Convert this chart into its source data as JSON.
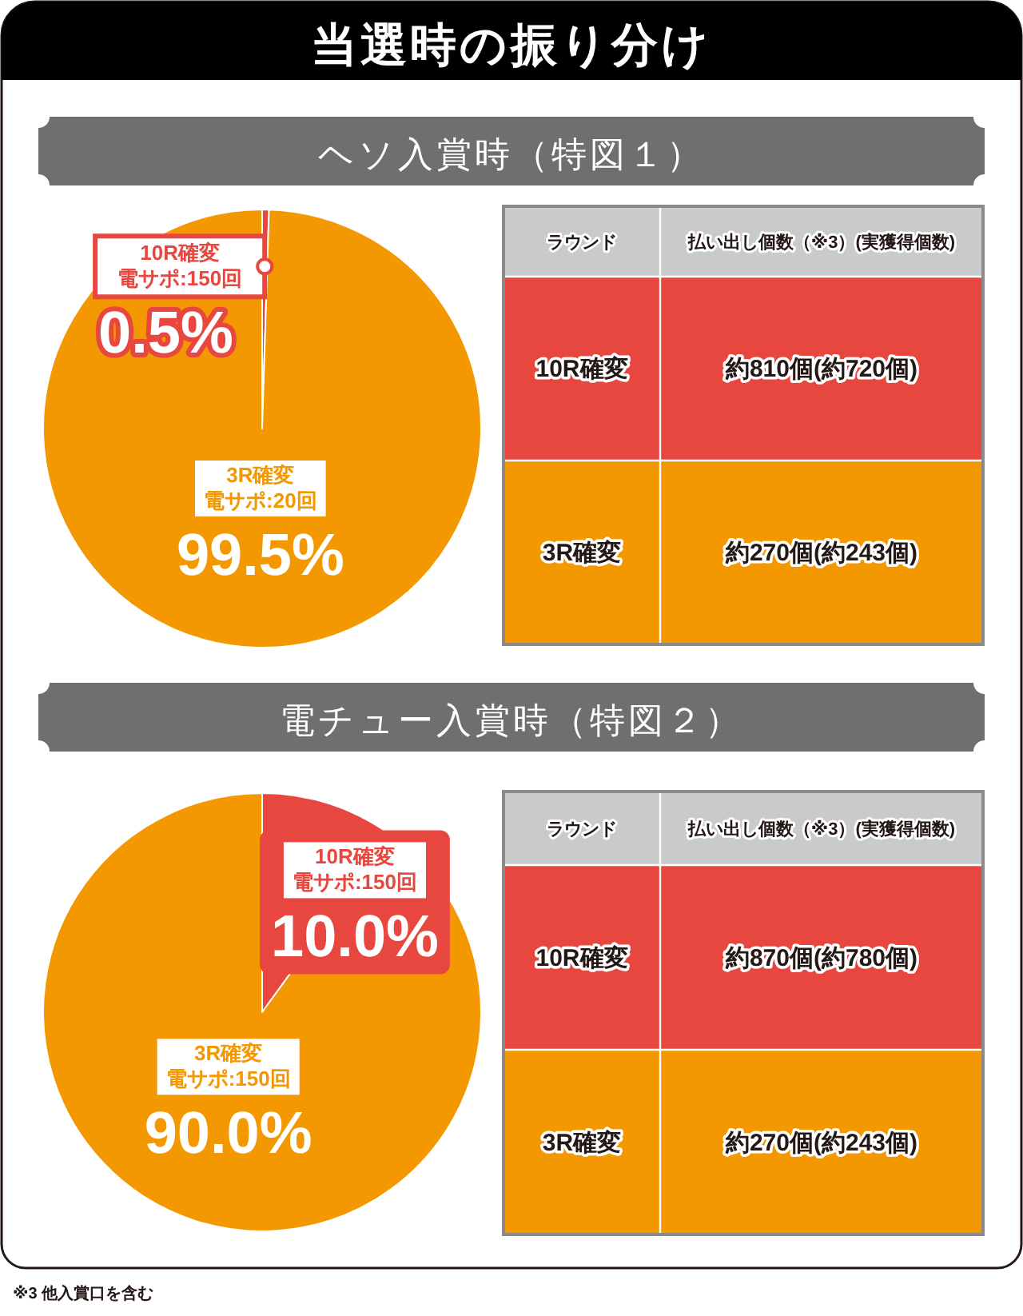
{
  "chart_data": [
    {
      "type": "pie",
      "title": "当選時の振り分け",
      "subtitle": "ヘソ入賞時（特図１）",
      "categories": [
        "10R確変",
        "3R確変"
      ],
      "annotations": [
        "電サポ:150回",
        "電サポ:20回"
      ],
      "values": [
        0.5,
        99.5
      ],
      "value_labels": [
        "0.5%",
        "99.5%"
      ],
      "colors": [
        "#e8473f",
        "#f39800"
      ]
    },
    {
      "type": "other",
      "xlabel": "ラウンド",
      "ylabel": "払い出し個数（※3）(実獲得個数)",
      "categories": [
        "10R確変",
        "3R確変"
      ],
      "value_labels": [
        "約810個(約720個)",
        "約270個(約243個)"
      ],
      "colors": [
        "#e8473f",
        "#f39800"
      ]
    },
    {
      "type": "pie",
      "subtitle": "電チュー入賞時（特図２）",
      "categories": [
        "10R確変",
        "3R確変"
      ],
      "annotations": [
        "電サポ:150回",
        "電サポ:150回"
      ],
      "values": [
        10,
        90
      ],
      "value_labels": [
        "10.0%",
        "90.0%"
      ],
      "colors": [
        "#e8473f",
        "#f39800"
      ]
    },
    {
      "type": "other",
      "xlabel": "ラウンド",
      "ylabel": "払い出し個数（※3）(実獲得個数)",
      "categories": [
        "10R確変",
        "3R確変"
      ],
      "value_labels": [
        "約870個(約780個)",
        "約270個(約243個)"
      ],
      "colors": [
        "#e8473f",
        "#f39800"
      ],
      "annotations": [
        "※3 他入賞口を含む"
      ]
    }
  ]
}
